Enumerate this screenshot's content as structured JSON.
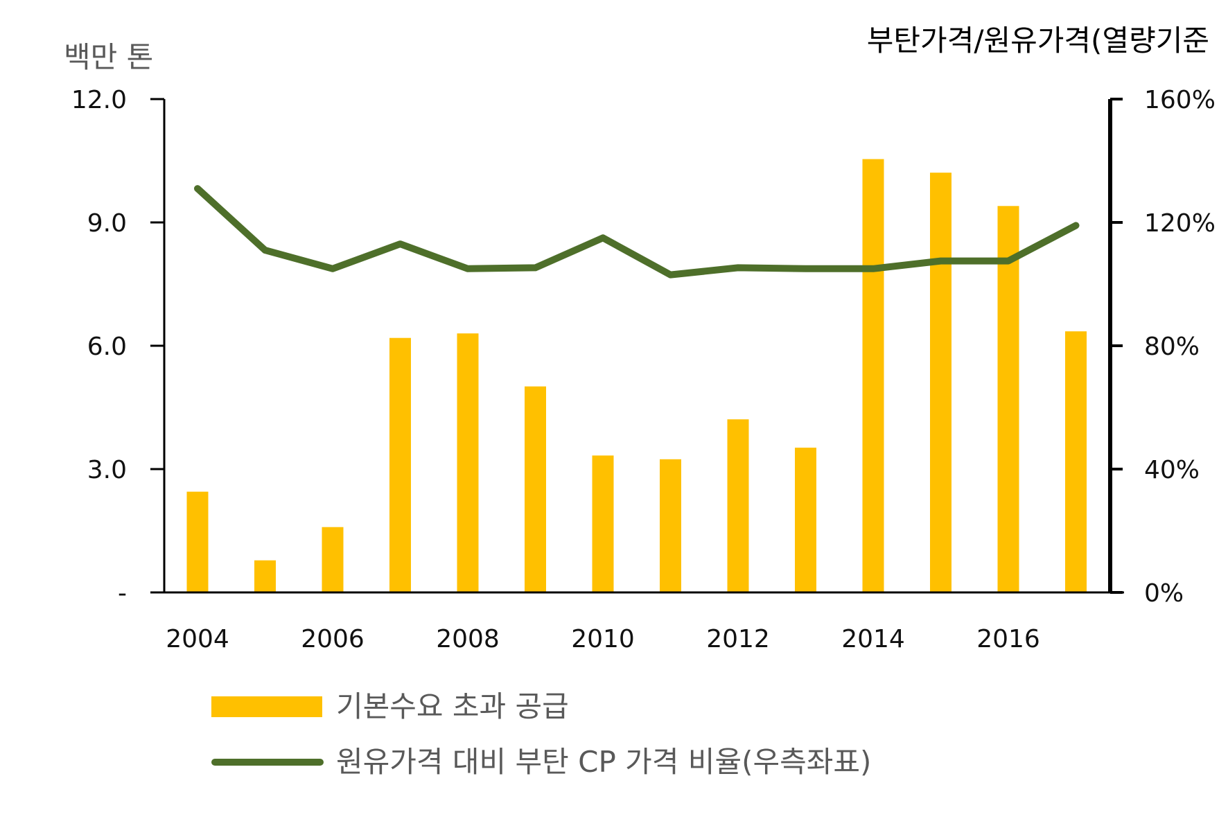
{
  "chart_data": {
    "type": "bar+line",
    "left_axis_unit": "백만 톤",
    "right_axis_unit": "부탄가격/원유가격(열량기준",
    "left_ylim": [
      0,
      12.0
    ],
    "left_ticks": [
      "-",
      "3.0",
      "6.0",
      "9.0",
      "12.0"
    ],
    "right_ylim": [
      0,
      160
    ],
    "right_ticks": [
      "0%",
      "40%",
      "80%",
      "120%",
      "160%"
    ],
    "x": [
      2004,
      2005,
      2006,
      2007,
      2008,
      2009,
      2010,
      2011,
      2012,
      2013,
      2014,
      2015,
      2016,
      2017
    ],
    "x_tick_labels": [
      "2004",
      "2006",
      "2008",
      "2010",
      "2012",
      "2014",
      "2016"
    ],
    "series": [
      {
        "name": "기본수요 초과 공급",
        "type": "bar",
        "axis": "left",
        "color": "#FFC000",
        "values": [
          2.45,
          0.78,
          1.59,
          6.19,
          6.3,
          5.01,
          3.33,
          3.24,
          4.21,
          3.52,
          10.54,
          10.21,
          9.4,
          6.35
        ]
      },
      {
        "name": "원유가격 대비 부탄 CP 가격 비율(우측좌표)",
        "type": "line",
        "axis": "right",
        "color": "#4E6F2A",
        "values": [
          131,
          111,
          105,
          113,
          105,
          105.3,
          115,
          103,
          105.3,
          105,
          105,
          107.5,
          107.5,
          119
        ]
      }
    ],
    "grid": false,
    "legend_position": "bottom-left"
  },
  "colors": {
    "axis": "#000000",
    "left_unit_text": "#595959",
    "right_unit_text": "#000000"
  }
}
